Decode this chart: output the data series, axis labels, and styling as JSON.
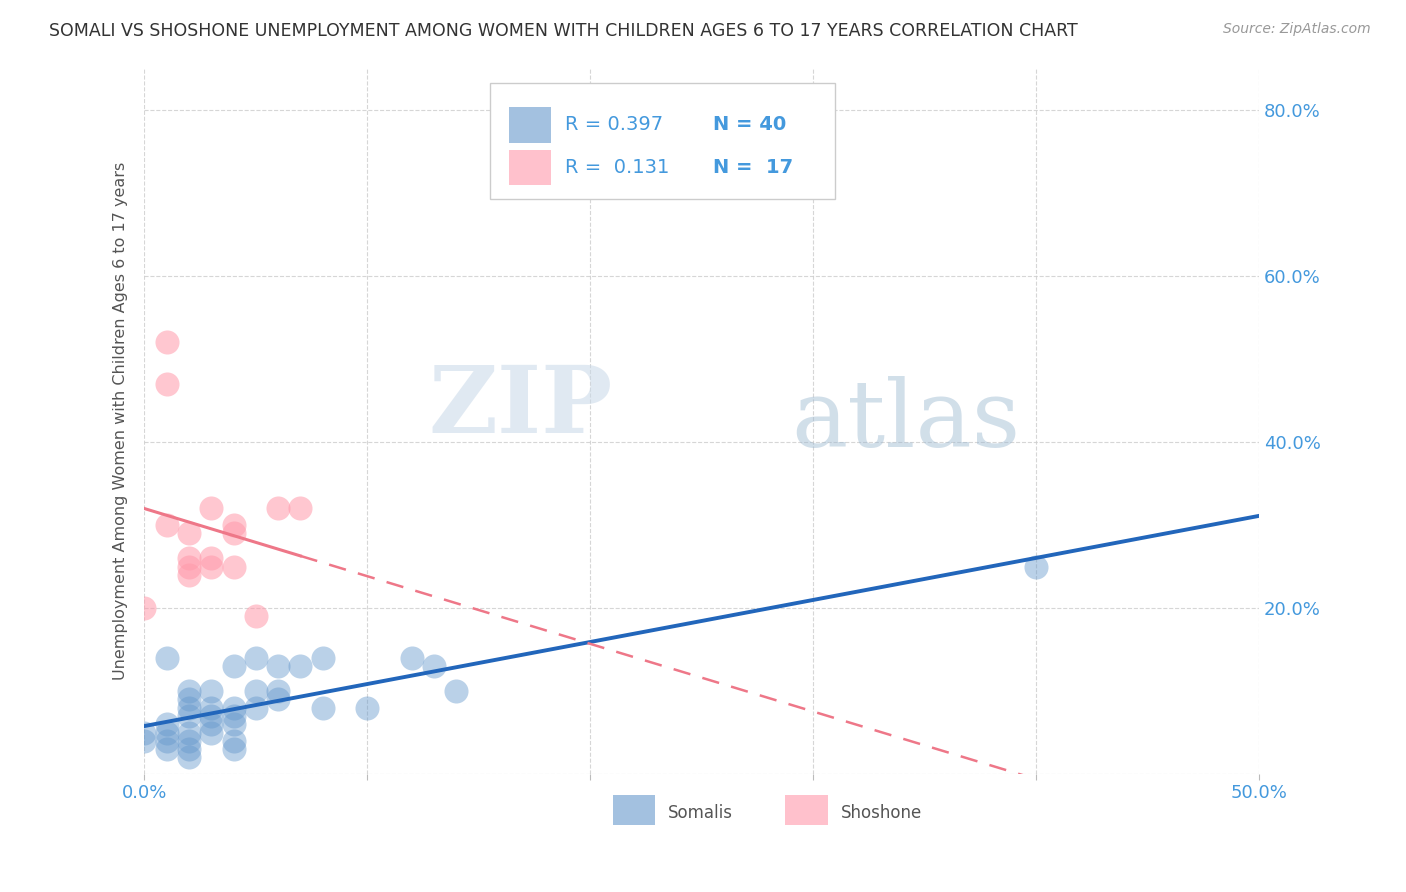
{
  "title": "SOMALI VS SHOSHONE UNEMPLOYMENT AMONG WOMEN WITH CHILDREN AGES 6 TO 17 YEARS CORRELATION CHART",
  "source": "Source: ZipAtlas.com",
  "ylabel": "Unemployment Among Women with Children Ages 6 to 17 years",
  "xlim": [
    0.0,
    0.5
  ],
  "ylim": [
    0.0,
    0.85
  ],
  "xticks": [
    0.0,
    0.1,
    0.2,
    0.3,
    0.4,
    0.5
  ],
  "yticks_right": [
    0.0,
    0.2,
    0.4,
    0.6,
    0.8
  ],
  "ytick_labels_right": [
    "",
    "20.0%",
    "40.0%",
    "60.0%",
    "80.0%"
  ],
  "xtick_labels": [
    "0.0%",
    "",
    "",
    "",
    "",
    "50.0%"
  ],
  "somali_color": "#6699CC",
  "shoshone_color": "#FF99AA",
  "somali_R": 0.397,
  "somali_N": 40,
  "shoshone_R": 0.131,
  "shoshone_N": 17,
  "watermark_zip": "ZIP",
  "watermark_atlas": "atlas",
  "somali_points": [
    [
      0.0,
      0.05
    ],
    [
      0.0,
      0.04
    ],
    [
      0.01,
      0.14
    ],
    [
      0.01,
      0.06
    ],
    [
      0.01,
      0.05
    ],
    [
      0.01,
      0.04
    ],
    [
      0.01,
      0.03
    ],
    [
      0.02,
      0.1
    ],
    [
      0.02,
      0.09
    ],
    [
      0.02,
      0.08
    ],
    [
      0.02,
      0.07
    ],
    [
      0.02,
      0.05
    ],
    [
      0.02,
      0.04
    ],
    [
      0.02,
      0.03
    ],
    [
      0.02,
      0.02
    ],
    [
      0.03,
      0.1
    ],
    [
      0.03,
      0.08
    ],
    [
      0.03,
      0.07
    ],
    [
      0.03,
      0.06
    ],
    [
      0.03,
      0.05
    ],
    [
      0.04,
      0.13
    ],
    [
      0.04,
      0.08
    ],
    [
      0.04,
      0.07
    ],
    [
      0.04,
      0.06
    ],
    [
      0.04,
      0.04
    ],
    [
      0.04,
      0.03
    ],
    [
      0.05,
      0.14
    ],
    [
      0.05,
      0.1
    ],
    [
      0.05,
      0.08
    ],
    [
      0.06,
      0.13
    ],
    [
      0.06,
      0.1
    ],
    [
      0.06,
      0.09
    ],
    [
      0.07,
      0.13
    ],
    [
      0.08,
      0.14
    ],
    [
      0.08,
      0.08
    ],
    [
      0.1,
      0.08
    ],
    [
      0.12,
      0.14
    ],
    [
      0.13,
      0.13
    ],
    [
      0.14,
      0.1
    ],
    [
      0.4,
      0.25
    ]
  ],
  "shoshone_points": [
    [
      0.0,
      0.2
    ],
    [
      0.01,
      0.52
    ],
    [
      0.01,
      0.47
    ],
    [
      0.01,
      0.3
    ],
    [
      0.02,
      0.29
    ],
    [
      0.02,
      0.26
    ],
    [
      0.02,
      0.25
    ],
    [
      0.02,
      0.24
    ],
    [
      0.03,
      0.32
    ],
    [
      0.03,
      0.26
    ],
    [
      0.03,
      0.25
    ],
    [
      0.04,
      0.3
    ],
    [
      0.04,
      0.29
    ],
    [
      0.04,
      0.25
    ],
    [
      0.05,
      0.19
    ],
    [
      0.06,
      0.32
    ],
    [
      0.07,
      0.32
    ]
  ],
  "grid_color": "#CCCCCC",
  "title_color": "#333333",
  "axis_color": "#4499DD",
  "legend_text_color": "#4499DD"
}
